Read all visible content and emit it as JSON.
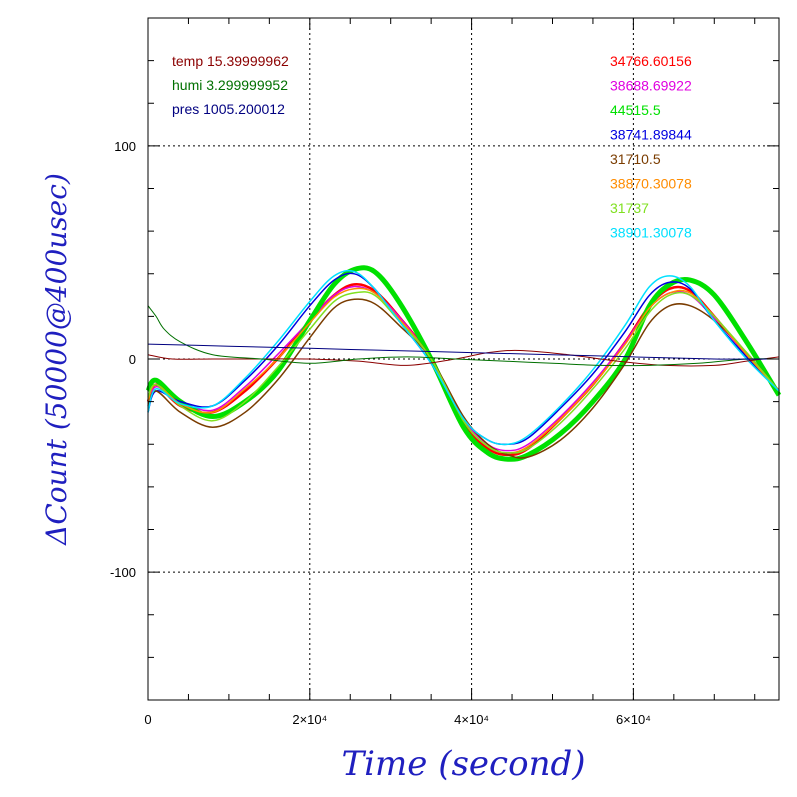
{
  "chart_data": {
    "type": "line",
    "title": "",
    "xlabel": "Time (second)",
    "ylabel": "ΔCount (50000@400usec)",
    "xlim": [
      0,
      78000
    ],
    "ylim": [
      -160,
      160
    ],
    "grid": true,
    "x_ticks": [
      {
        "value": 0,
        "label": "0"
      },
      {
        "value": 20000,
        "label": "2×10⁴"
      },
      {
        "value": 40000,
        "label": "4×10⁴"
      },
      {
        "value": 60000,
        "label": "6×10⁴"
      }
    ],
    "y_ticks": [
      {
        "value": 100,
        "label": "100"
      },
      {
        "value": 0,
        "label": "0"
      },
      {
        "value": -100,
        "label": "-100"
      }
    ],
    "env_legend": [
      {
        "text": "temp 15.39999962",
        "color": "#8b0000"
      },
      {
        "text": "humi 3.299999952",
        "color": "#007000"
      },
      {
        "text": "pres 1005.200012",
        "color": "#000080"
      }
    ],
    "series_legend": [
      {
        "text": "34766.60156",
        "color": "#ff0000"
      },
      {
        "text": "38688.69922",
        "color": "#e000e0"
      },
      {
        "text": "44515.5",
        "color": "#00e000"
      },
      {
        "text": "38741.89844",
        "color": "#0000e0"
      },
      {
        "text": "31710.5",
        "color": "#7a3c00"
      },
      {
        "text": "38870.30078",
        "color": "#ff8c00"
      },
      {
        "text": "31737",
        "color": "#80e020"
      },
      {
        "text": "38901.30078",
        "color": "#00e0ff"
      }
    ],
    "series": [
      {
        "name": "34766.60156",
        "color": "#ff0000",
        "width": 2.5,
        "x": [
          0,
          1000,
          4000,
          8000,
          12000,
          16000,
          20000,
          23000,
          25500,
          28000,
          31000,
          35000,
          39000,
          42000,
          44500,
          47000,
          51000,
          55000,
          59000,
          62000,
          64500,
          67000,
          70000,
          74000,
          78000
        ],
        "y": [
          -20,
          -12,
          -22,
          -25,
          -15,
          0,
          18,
          30,
          35,
          32,
          20,
          0,
          -30,
          -42,
          -45,
          -42,
          -28,
          -12,
          8,
          25,
          33,
          32,
          20,
          2,
          -15
        ]
      },
      {
        "name": "38688.69922",
        "color": "#e000e0",
        "width": 1.5,
        "x": [
          0,
          1000,
          4000,
          8000,
          12000,
          16000,
          20000,
          23000,
          25500,
          28000,
          31000,
          35000,
          39000,
          42000,
          44500,
          47000,
          51000,
          55000,
          59000,
          62000,
          64500,
          67000,
          70000,
          74000,
          78000
        ],
        "y": [
          -22,
          -13,
          -20,
          -24,
          -13,
          2,
          18,
          30,
          34,
          31,
          20,
          0,
          -28,
          -40,
          -43,
          -40,
          -27,
          -11,
          8,
          24,
          31,
          30,
          19,
          2,
          -15
        ]
      },
      {
        "name": "44515.5",
        "color": "#00e000",
        "width": 5,
        "x": [
          0,
          1000,
          4000,
          8000,
          12000,
          16000,
          20000,
          23000,
          25500,
          28000,
          31000,
          35000,
          39000,
          42000,
          44500,
          47000,
          51000,
          55000,
          59000,
          62000,
          64500,
          67000,
          70000,
          74000,
          78000
        ],
        "y": [
          -15,
          -10,
          -20,
          -27,
          -20,
          -6,
          18,
          35,
          42,
          41,
          27,
          0,
          -32,
          -44,
          -47,
          -45,
          -35,
          -20,
          0,
          25,
          35,
          37,
          30,
          8,
          -17
        ]
      },
      {
        "name": "38741.89844",
        "color": "#0000e0",
        "width": 1.5,
        "x": [
          0,
          1000,
          4000,
          8000,
          12000,
          16000,
          20000,
          23000,
          25500,
          28000,
          31000,
          35000,
          39000,
          42000,
          44500,
          47000,
          51000,
          55000,
          59000,
          62000,
          64500,
          67000,
          70000,
          74000,
          78000
        ],
        "y": [
          -25,
          -15,
          -20,
          -22,
          -10,
          6,
          25,
          37,
          40,
          33,
          18,
          -2,
          -28,
          -38,
          -40,
          -37,
          -23,
          -7,
          13,
          30,
          36,
          33,
          18,
          1,
          -15
        ]
      },
      {
        "name": "31710.5",
        "color": "#7a3c00",
        "width": 1.5,
        "x": [
          0,
          1000,
          4000,
          8000,
          12000,
          16000,
          20000,
          23000,
          25500,
          28000,
          31000,
          35000,
          39000,
          42000,
          44500,
          47000,
          51000,
          55000,
          59000,
          62000,
          64500,
          67000,
          70000,
          74000,
          78000
        ],
        "y": [
          -22,
          -15,
          -25,
          -32,
          -25,
          -10,
          10,
          24,
          28,
          26,
          16,
          0,
          -27,
          -40,
          -45,
          -46,
          -38,
          -23,
          -2,
          17,
          25,
          25,
          18,
          3,
          -15
        ]
      },
      {
        "name": "38870.30078",
        "color": "#ff8c00",
        "width": 1.5,
        "x": [
          0,
          1000,
          4000,
          8000,
          12000,
          16000,
          20000,
          23000,
          25500,
          28000,
          31000,
          35000,
          39000,
          42000,
          44500,
          47000,
          51000,
          55000,
          59000,
          62000,
          64500,
          67000,
          70000,
          74000,
          78000
        ],
        "y": [
          -20,
          -12,
          -21,
          -25,
          -14,
          0,
          17,
          29,
          33,
          31,
          19,
          0,
          -29,
          -41,
          -44,
          -41,
          -28,
          -12,
          7,
          24,
          31,
          31,
          20,
          2,
          -15
        ]
      },
      {
        "name": "31737",
        "color": "#80e020",
        "width": 1.5,
        "x": [
          0,
          1000,
          4000,
          8000,
          12000,
          16000,
          20000,
          23000,
          25500,
          28000,
          31000,
          35000,
          39000,
          42000,
          44500,
          47000,
          51000,
          55000,
          59000,
          62000,
          64500,
          67000,
          70000,
          74000,
          78000
        ],
        "y": [
          -18,
          -12,
          -22,
          -29,
          -20,
          -4,
          14,
          27,
          31,
          30,
          18,
          0,
          -29,
          -41,
          -44,
          -42,
          -30,
          -14,
          5,
          22,
          30,
          30,
          20,
          3,
          -15
        ]
      },
      {
        "name": "38901.30078",
        "color": "#00e0ff",
        "width": 1.5,
        "x": [
          0,
          1000,
          4000,
          8000,
          12000,
          16000,
          20000,
          23000,
          25500,
          28000,
          31000,
          35000,
          39000,
          42000,
          44500,
          47000,
          51000,
          55000,
          59000,
          62000,
          64500,
          67000,
          70000,
          74000,
          78000
        ],
        "y": [
          -25,
          -14,
          -21,
          -22,
          -9,
          8,
          27,
          39,
          41,
          33,
          18,
          -2,
          -28,
          -38,
          -40,
          -36,
          -22,
          -5,
          16,
          34,
          39,
          34,
          18,
          0,
          -15
        ]
      },
      {
        "name": "temp 15.39999962",
        "color": "#8b0000",
        "width": 1,
        "x": [
          0,
          3000,
          8000,
          14000,
          20000,
          26000,
          32000,
          38000,
          42000,
          46000,
          52000,
          58000,
          64000,
          70000,
          74000,
          78000
        ],
        "y": [
          2,
          0,
          0,
          0,
          0,
          -1,
          -3,
          0,
          3,
          4,
          2,
          -1,
          -3,
          -3,
          -1,
          1
        ]
      },
      {
        "name": "humi 3.299999952",
        "color": "#007000",
        "width": 1,
        "x": [
          0,
          1000,
          2000,
          4000,
          8000,
          14000,
          20000,
          26000,
          32000,
          38000,
          44000,
          50000,
          56000,
          62000,
          68000,
          74000,
          78000
        ],
        "y": [
          25,
          20,
          14,
          8,
          2,
          0,
          -2,
          0,
          1,
          0,
          -1,
          -2,
          -3,
          -3,
          -2,
          0,
          0
        ]
      },
      {
        "name": "pres 1005.200012",
        "color": "#000080",
        "width": 1,
        "x": [
          0,
          10000,
          20000,
          30000,
          40000,
          50000,
          60000,
          70000,
          78000
        ],
        "y": [
          7,
          6,
          5,
          4,
          3,
          2,
          1,
          0,
          0
        ]
      }
    ]
  }
}
